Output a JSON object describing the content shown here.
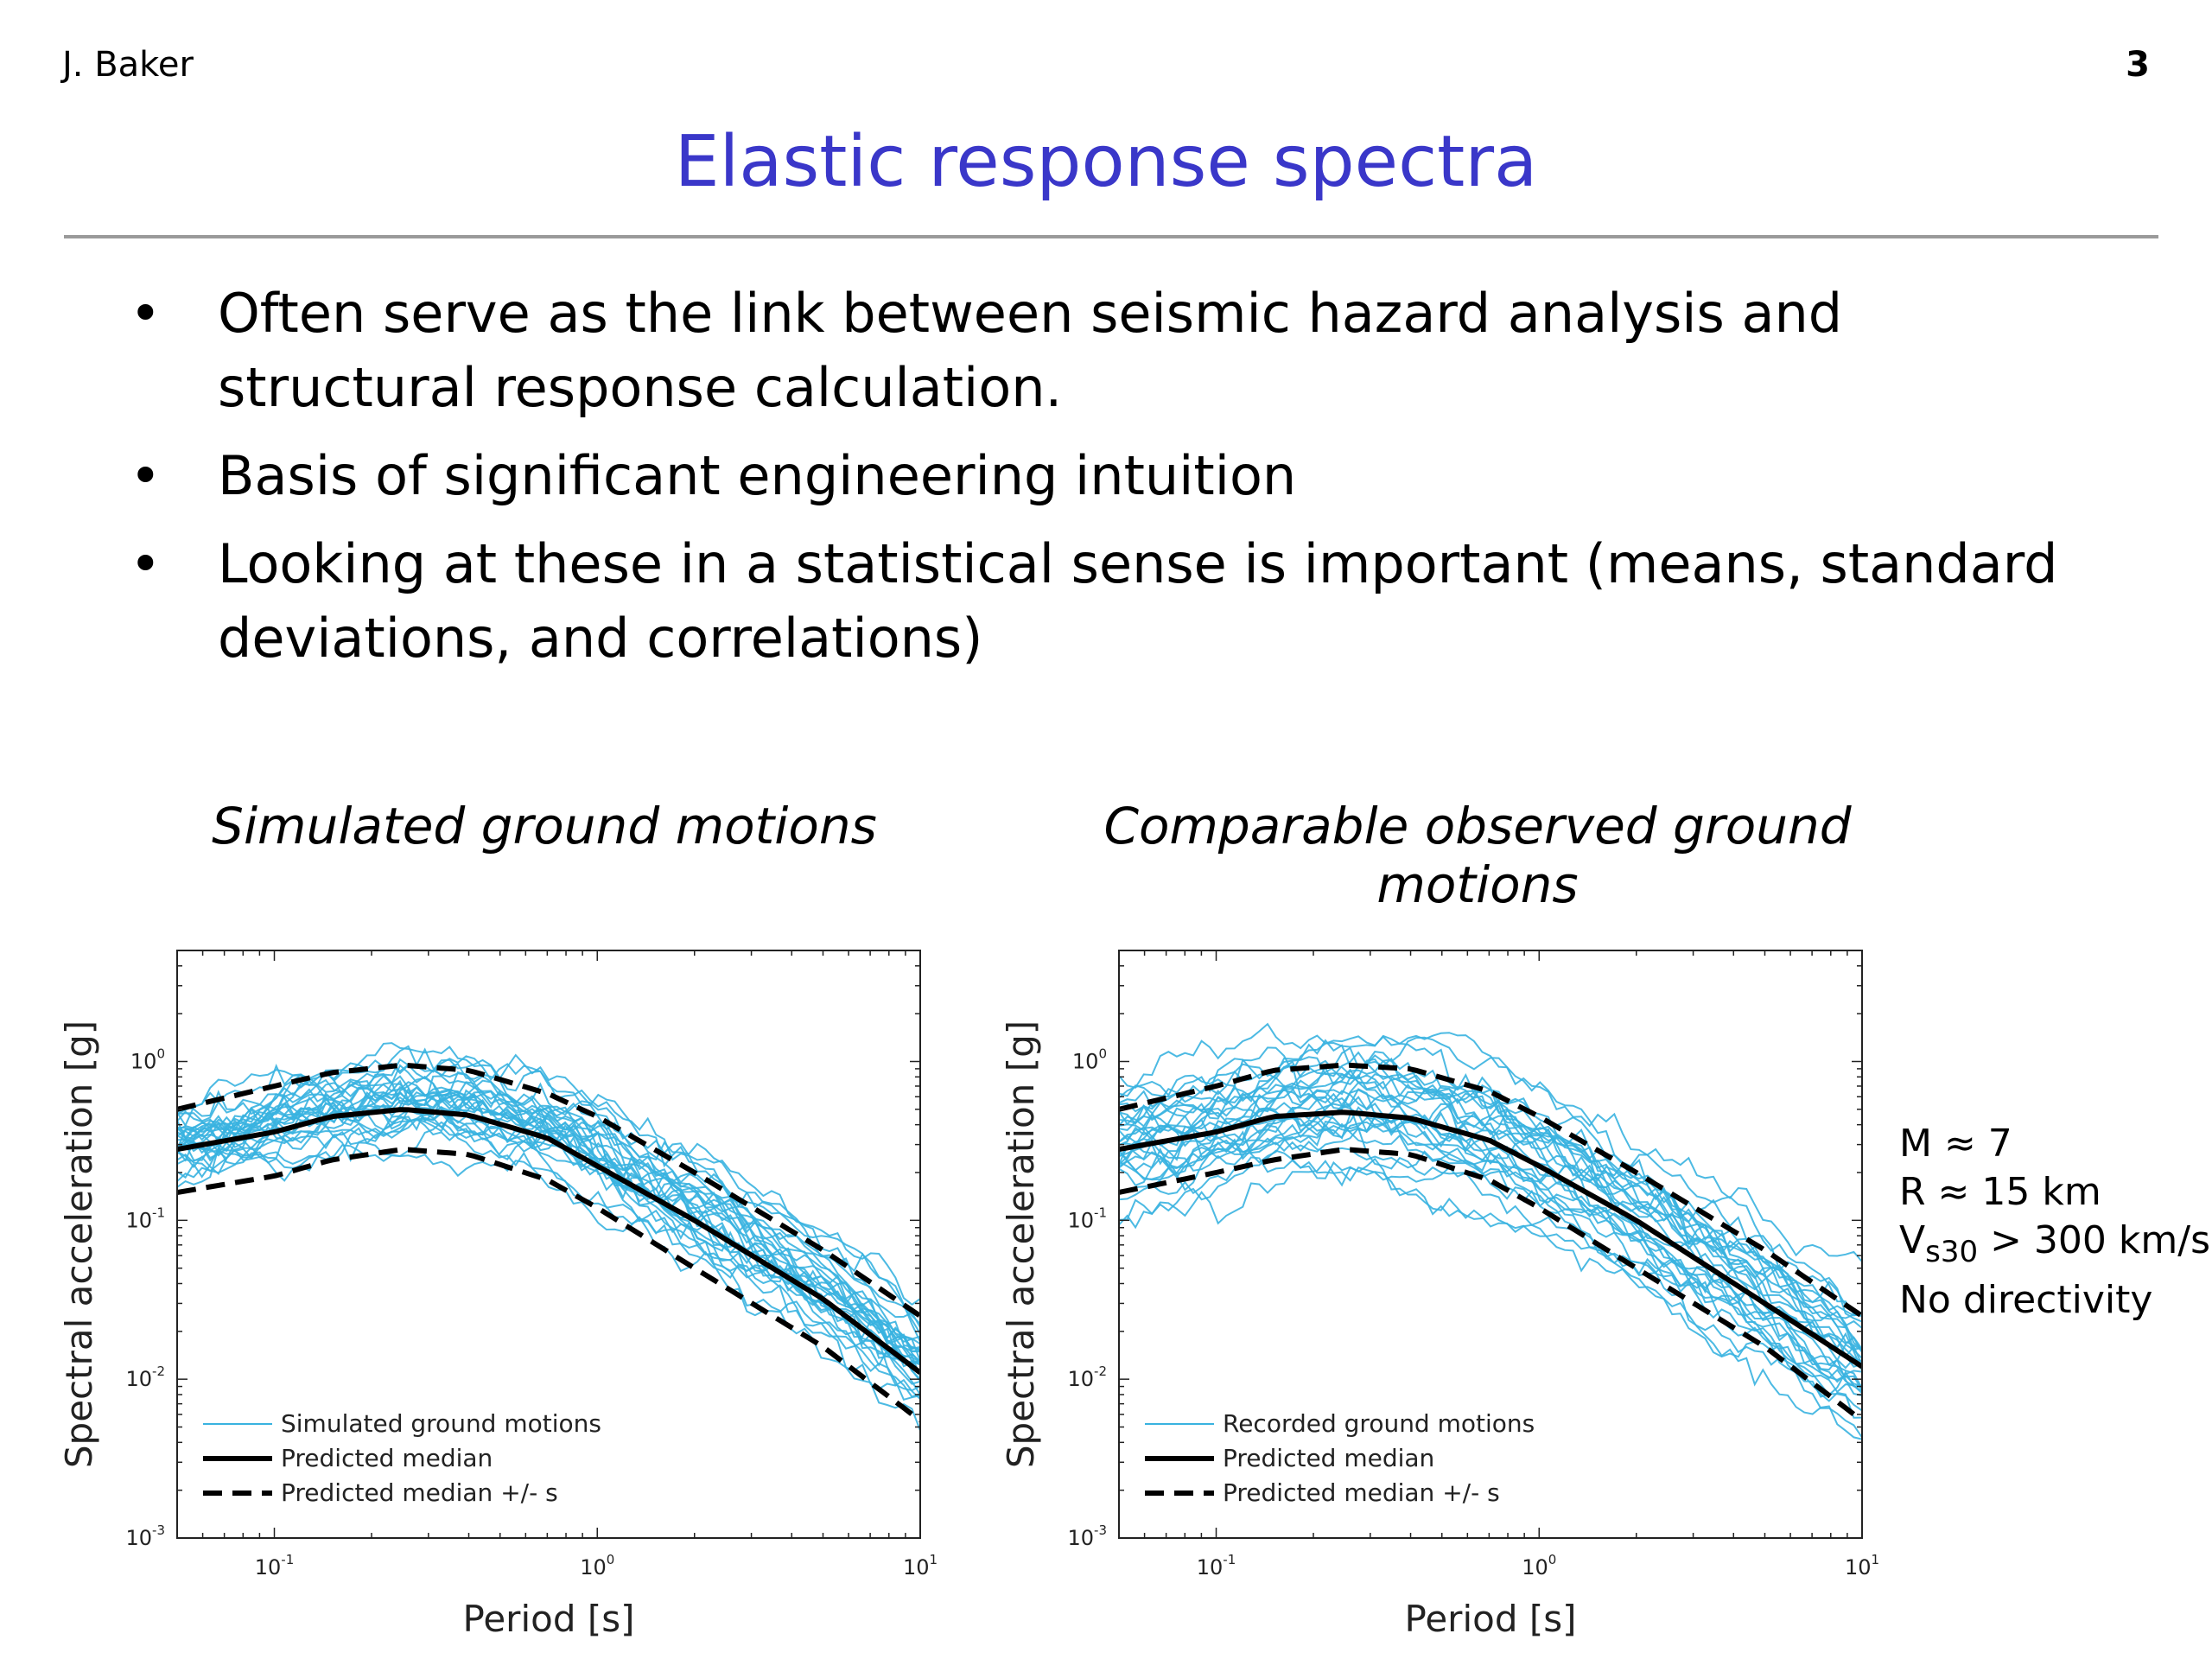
{
  "header": {
    "author": "J. Baker",
    "page_number": "3"
  },
  "title": "Elastic response spectra",
  "bullets": [
    "Often serve as the link between seismic hazard analysis and structural response calculation.",
    "Basis of significant engineering intuition",
    "Looking at these in a statistical sense is important (means, standard deviations, and correlations)"
  ],
  "bullet_symbol": "•",
  "params": {
    "magnitude": "M ≈ 7",
    "distance": "R ≈ 15 km",
    "vs30_prefix": "V",
    "vs30_sub": "s30",
    "vs30_suffix": " > 300 km/s",
    "directivity": "No directivity"
  },
  "colors": {
    "title": "#3a37c9",
    "ground_motion": "#39b3e0",
    "median": "#000000"
  },
  "chart_data": [
    {
      "type": "line",
      "caption": "Simulated ground motions",
      "xlabel": "Period [s]",
      "ylabel": "Spectral acceleration [g]",
      "x_scale": "log",
      "y_scale": "log",
      "xlim": [
        0.05,
        10
      ],
      "ylim": [
        0.001,
        5
      ],
      "x_ticks": [
        {
          "value": 0.1,
          "base": "10",
          "exp": "-1"
        },
        {
          "value": 1,
          "base": "10",
          "exp": "0"
        },
        {
          "value": 10,
          "base": "10",
          "exp": "1"
        }
      ],
      "y_ticks": [
        {
          "value": 0.001,
          "base": "10",
          "exp": "-3"
        },
        {
          "value": 0.01,
          "base": "10",
          "exp": "-2"
        },
        {
          "value": 0.1,
          "base": "10",
          "exp": "-1"
        },
        {
          "value": 1,
          "base": "10",
          "exp": "0"
        }
      ],
      "legend_position": "bottom-left",
      "legend": [
        "Simulated ground motions",
        "Predicted median",
        "Predicted median +/-   s"
      ],
      "median": {
        "x": [
          0.05,
          0.1,
          0.15,
          0.25,
          0.4,
          0.7,
          1,
          2,
          5,
          10
        ],
        "y": [
          0.28,
          0.36,
          0.45,
          0.5,
          0.46,
          0.33,
          0.22,
          0.1,
          0.032,
          0.011
        ]
      },
      "upper": {
        "x": [
          0.05,
          0.1,
          0.15,
          0.25,
          0.4,
          0.7,
          1,
          2,
          5,
          10
        ],
        "y": [
          0.5,
          0.7,
          0.85,
          0.95,
          0.88,
          0.63,
          0.45,
          0.2,
          0.065,
          0.025
        ]
      },
      "lower": {
        "x": [
          0.05,
          0.1,
          0.15,
          0.25,
          0.4,
          0.7,
          1,
          2,
          5,
          10
        ],
        "y": [
          0.15,
          0.19,
          0.24,
          0.28,
          0.26,
          0.18,
          0.12,
          0.05,
          0.016,
          0.0055
        ]
      },
      "spread": {
        "count": 30,
        "sigma": 0.17,
        "extra_sigma": 0
      }
    },
    {
      "type": "line",
      "caption": "Comparable observed ground motions",
      "xlabel": "Period [s]",
      "ylabel": "Spectral acceleration [g]",
      "x_scale": "log",
      "y_scale": "log",
      "xlim": [
        0.05,
        10
      ],
      "ylim": [
        0.001,
        5
      ],
      "x_ticks": [
        {
          "value": 0.1,
          "base": "10",
          "exp": "-1"
        },
        {
          "value": 1,
          "base": "10",
          "exp": "0"
        },
        {
          "value": 10,
          "base": "10",
          "exp": "1"
        }
      ],
      "y_ticks": [
        {
          "value": 0.001,
          "base": "10",
          "exp": "-3"
        },
        {
          "value": 0.01,
          "base": "10",
          "exp": "-2"
        },
        {
          "value": 0.1,
          "base": "10",
          "exp": "-1"
        },
        {
          "value": 1,
          "base": "10",
          "exp": "0"
        }
      ],
      "legend_position": "bottom-left",
      "legend": [
        "Recorded ground motions",
        "Predicted median",
        "Predicted median +/-   s"
      ],
      "median": {
        "x": [
          0.05,
          0.1,
          0.15,
          0.25,
          0.4,
          0.7,
          1,
          2,
          5,
          10
        ],
        "y": [
          0.28,
          0.36,
          0.45,
          0.48,
          0.44,
          0.32,
          0.22,
          0.1,
          0.03,
          0.012
        ]
      },
      "upper": {
        "x": [
          0.05,
          0.1,
          0.15,
          0.25,
          0.4,
          0.7,
          1,
          2,
          5,
          10
        ],
        "y": [
          0.5,
          0.7,
          0.88,
          0.95,
          0.9,
          0.65,
          0.45,
          0.2,
          0.065,
          0.025
        ]
      },
      "lower": {
        "x": [
          0.05,
          0.1,
          0.15,
          0.25,
          0.4,
          0.7,
          1,
          2,
          5,
          10
        ],
        "y": [
          0.15,
          0.2,
          0.24,
          0.28,
          0.26,
          0.18,
          0.12,
          0.05,
          0.016,
          0.0055
        ]
      },
      "spread": {
        "count": 30,
        "sigma": 0.3,
        "extra_sigma": 0.12
      }
    }
  ]
}
